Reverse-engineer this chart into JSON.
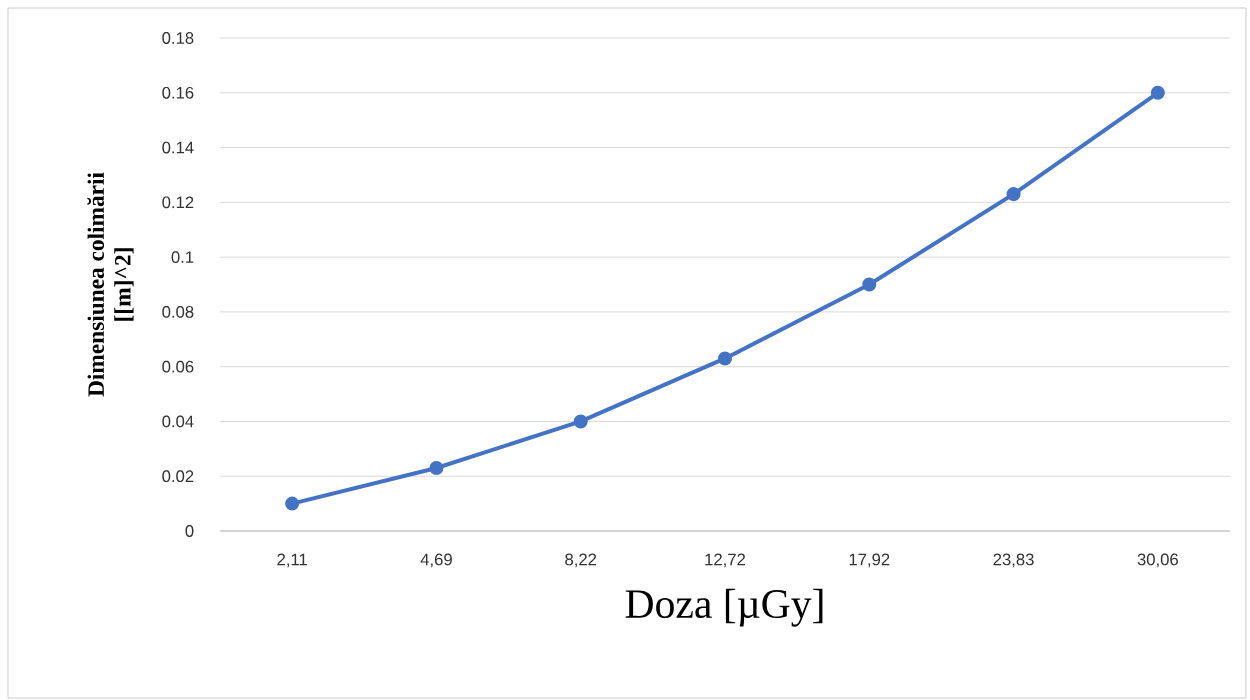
{
  "chart_data": {
    "type": "line",
    "categories": [
      "2,11",
      "4,69",
      "8,22",
      "12,72",
      "17,92",
      "23,83",
      "30,06"
    ],
    "values": [
      0.01,
      0.023,
      0.04,
      0.063,
      0.09,
      0.123,
      0.16
    ],
    "color": "#4472c4",
    "marker": "circle",
    "xlabel": "Doza    [µGy]",
    "ylabel": "Dimensiunea colimării [[m]^2]",
    "ylim": [
      0,
      0.18
    ],
    "yticks": [
      0,
      0.02,
      0.04,
      0.06,
      0.08,
      0.1,
      0.12,
      0.14,
      0.16,
      0.18
    ],
    "grid": "y"
  }
}
